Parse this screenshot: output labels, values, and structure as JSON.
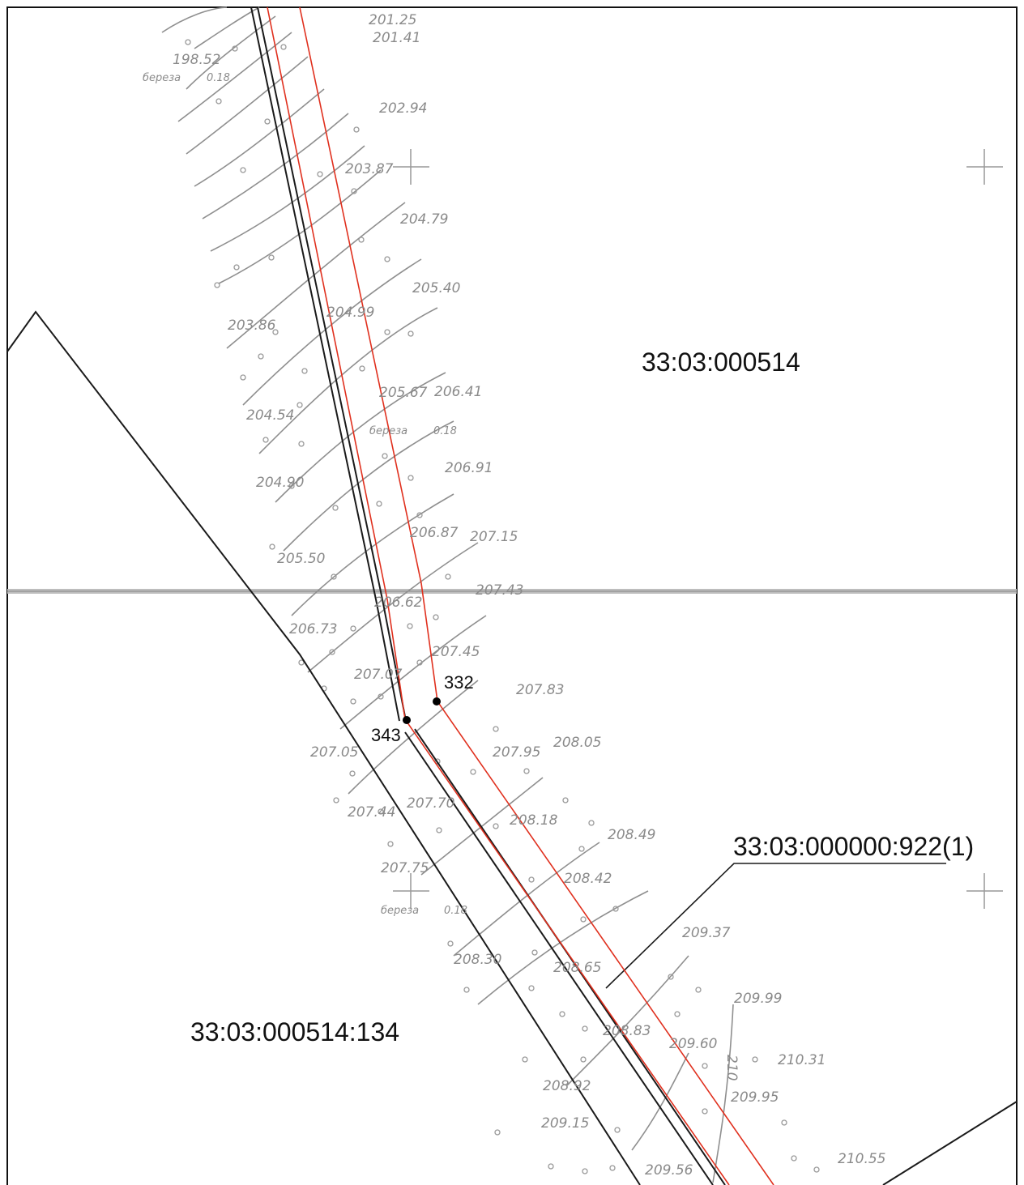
{
  "map": {
    "parcels": [
      {
        "id": "block",
        "label": "33:03:000514"
      },
      {
        "id": "lot-134",
        "label": "33:03:000514:134"
      },
      {
        "id": "lot-922",
        "label": "33:03:000000:922(1)"
      }
    ],
    "points": [
      {
        "id": "p332",
        "label": "332"
      },
      {
        "id": "p343",
        "label": "343"
      }
    ],
    "elevations": [
      "201.25",
      "201.41",
      "198.52",
      "202.94",
      "203.87",
      "204.79",
      "205.40",
      "203.86",
      "204.99",
      "206.41",
      "205.67",
      "204.54",
      "206.91",
      "204.90",
      "206.87",
      "207.15",
      "205.50",
      "207.43",
      "206.73",
      "206.62",
      "207.45",
      "207.07",
      "207.83",
      "207.05",
      "207.95",
      "208.05",
      "207.44",
      "207.70",
      "208.18",
      "208.49",
      "207.75",
      "208.42",
      "209.37",
      "208.30",
      "208.65",
      "208.83",
      "209.99",
      "209.60",
      "210.31",
      "208.92",
      "209.95",
      "209.15",
      "209.56",
      "210.55"
    ],
    "tree_notes": [
      {
        "id": "tree-1",
        "species": "береза",
        "note": "0.18"
      },
      {
        "id": "tree-2",
        "species": "береза",
        "note": "0.18"
      },
      {
        "id": "tree-3",
        "species": "береза",
        "note": "0.18"
      }
    ],
    "contour_label": "210",
    "colors": {
      "boundary": "#1a1a1a",
      "red_line": "#e0301e",
      "topo": "#8a8a8a",
      "frame": "#111111",
      "sheet_edge": "#bdbdbd"
    }
  }
}
